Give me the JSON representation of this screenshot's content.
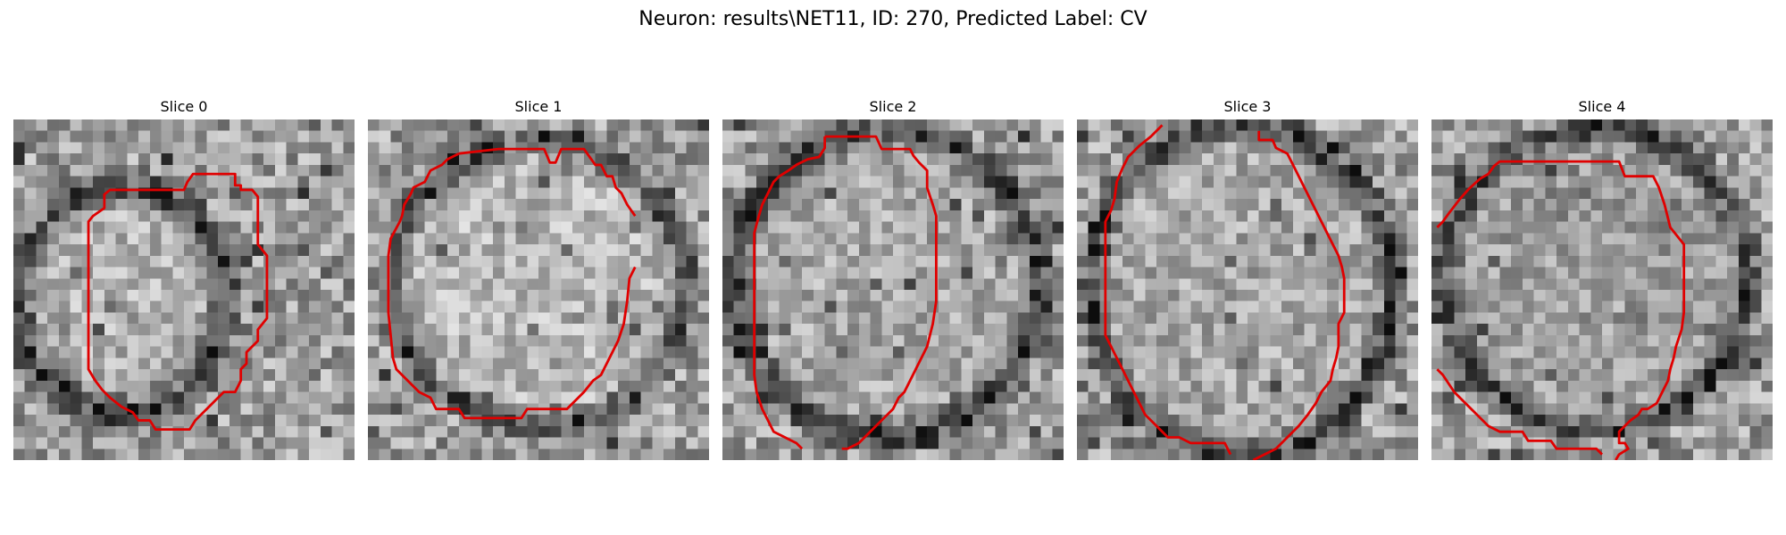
{
  "figure_title": "Neuron: results\\NET11, ID: 270, Predicted Label: CV",
  "contour_color": "#e00000",
  "colormap": "grayscale",
  "panels": [
    {
      "title": "Slice 0"
    },
    {
      "title": "Slice 1"
    },
    {
      "title": "Slice 2"
    },
    {
      "title": "Slice 3"
    },
    {
      "title": "Slice 4"
    }
  ]
}
